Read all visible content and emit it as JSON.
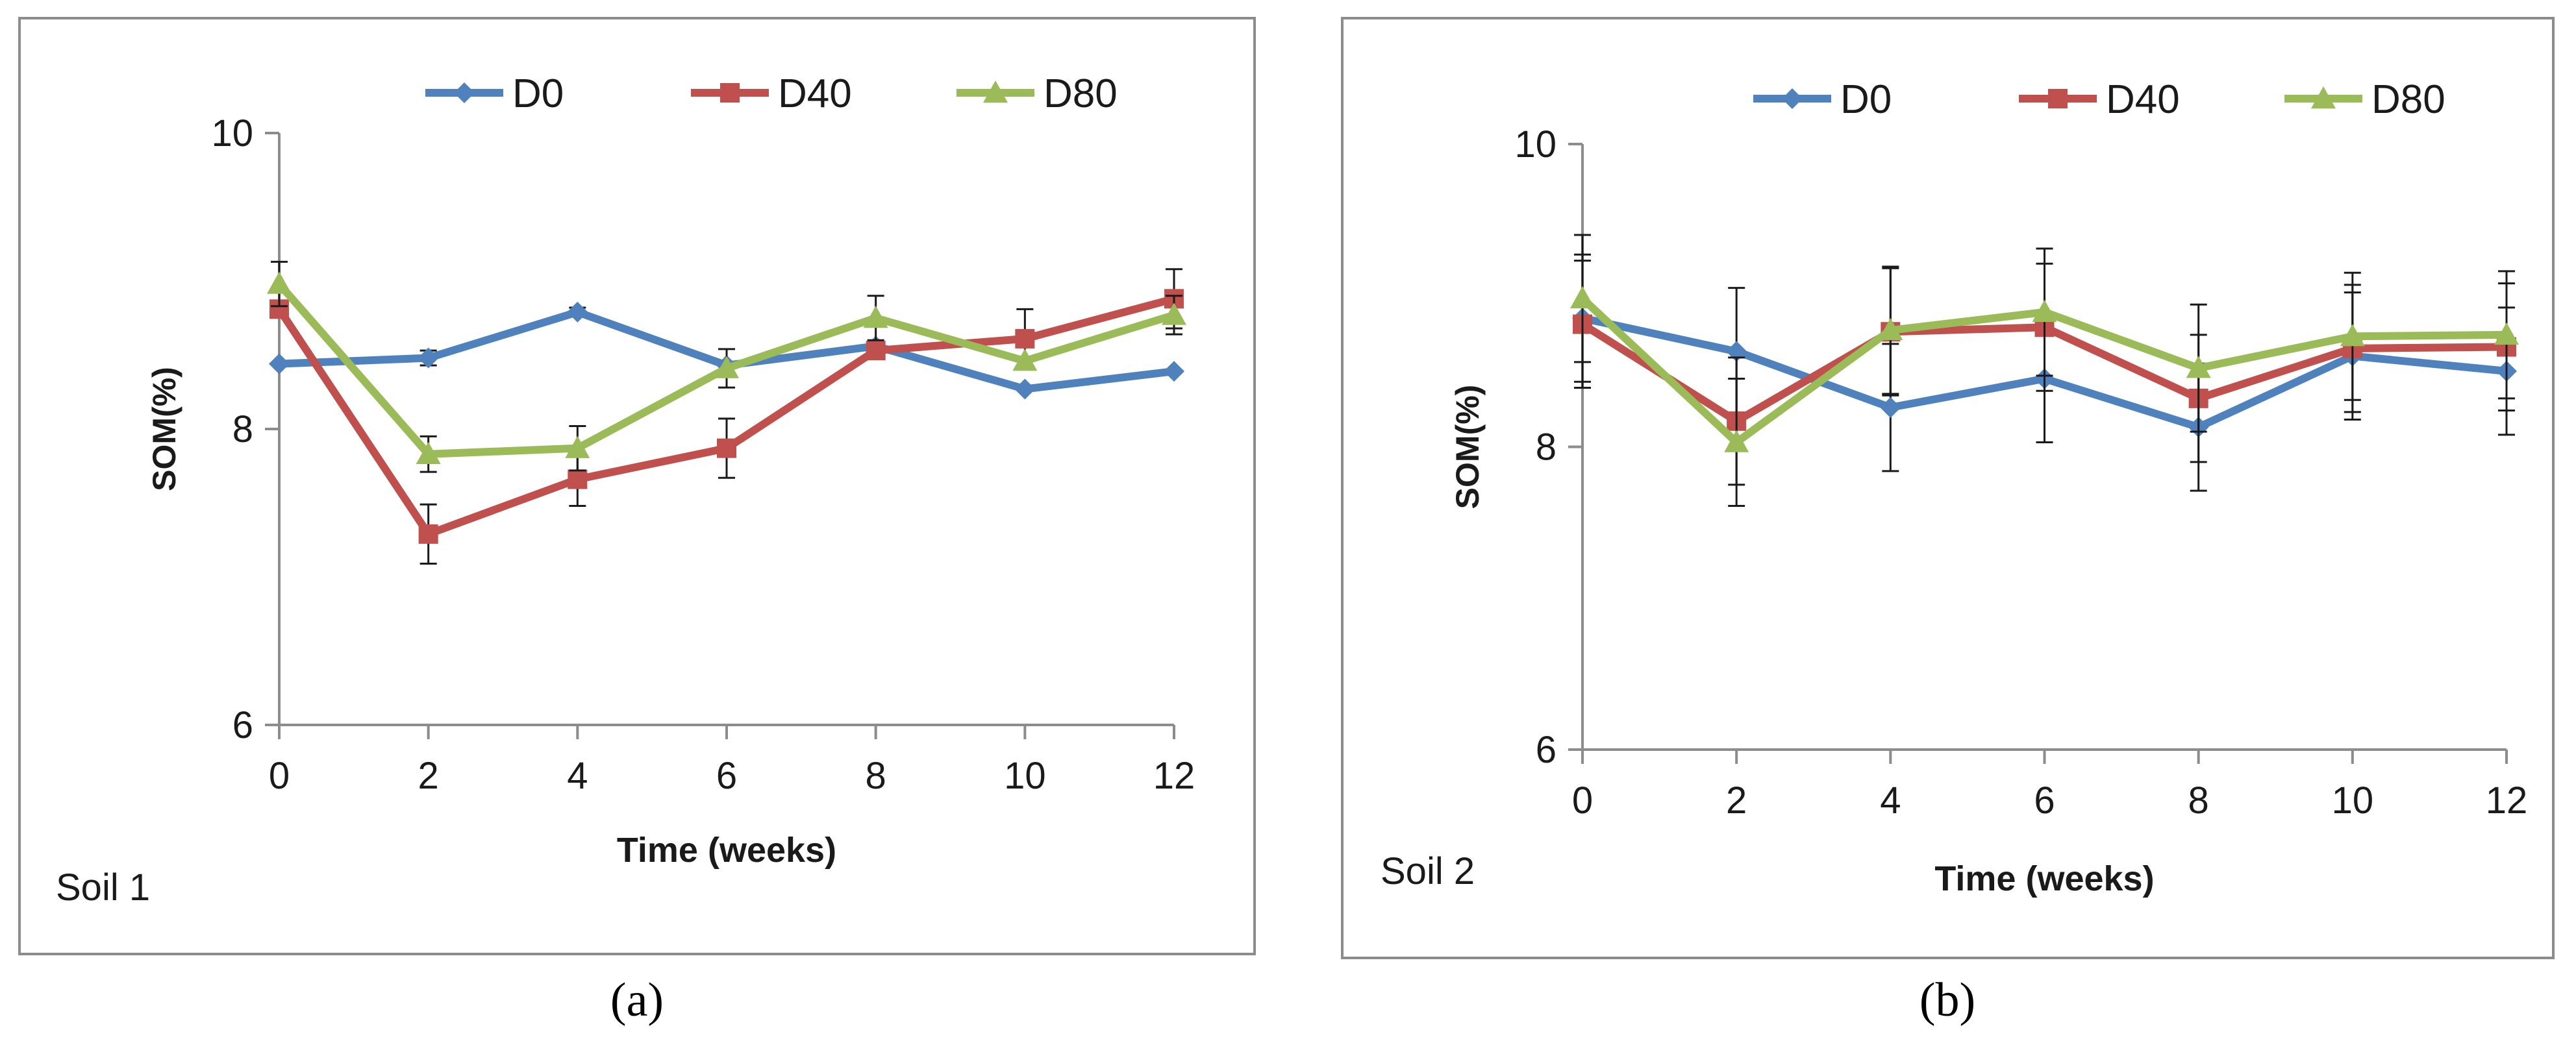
{
  "chart_data": [
    {
      "type": "line",
      "panel_label": "Soil 1",
      "caption": "(a)",
      "xlabel": "Time (weeks)",
      "ylabel": "SOM(%)",
      "x": [
        0,
        2,
        4,
        6,
        8,
        10,
        12
      ],
      "x_ticks": [
        "0",
        "2",
        "4",
        "6",
        "8",
        "10",
        "12"
      ],
      "ylim": [
        6,
        10
      ],
      "y_ticks": [
        "6",
        "8",
        "10"
      ],
      "grid": false,
      "legend_position": "top",
      "series": [
        {
          "name": "D0",
          "color": "#4f81bd",
          "marker": "diamond",
          "values": [
            8.44,
            8.48,
            8.79,
            8.43,
            8.56,
            8.27,
            8.39
          ],
          "errors": [
            0.0,
            0.05,
            0.03,
            0.0,
            0.0,
            0.0,
            0.0
          ]
        },
        {
          "name": "D40",
          "color": "#c0504d",
          "marker": "square",
          "values": [
            8.81,
            7.29,
            7.66,
            7.87,
            8.53,
            8.61,
            8.88
          ],
          "errors": [
            0.0,
            0.2,
            0.18,
            0.2,
            0.0,
            0.2,
            0.2
          ]
        },
        {
          "name": "D80",
          "color": "#9bbb59",
          "marker": "triangle",
          "values": [
            8.98,
            7.83,
            7.87,
            8.41,
            8.75,
            8.46,
            8.77
          ],
          "errors": [
            0.15,
            0.12,
            0.15,
            0.13,
            0.15,
            0.0,
            0.13
          ]
        }
      ]
    },
    {
      "type": "line",
      "panel_label": "Soil 2",
      "caption": "(b)",
      "xlabel": "Time (weeks)",
      "ylabel": "SOM(%)",
      "x": [
        0,
        2,
        4,
        6,
        8,
        10,
        12
      ],
      "x_ticks": [
        "0",
        "2",
        "4",
        "6",
        "8",
        "10",
        "12"
      ],
      "ylim": [
        6,
        10
      ],
      "y_ticks": [
        "6",
        "8",
        "10"
      ],
      "grid": false,
      "legend_position": "top",
      "series": [
        {
          "name": "D0",
          "color": "#4f81bd",
          "marker": "diamond",
          "values": [
            8.85,
            8.63,
            8.26,
            8.45,
            8.13,
            8.6,
            8.5
          ],
          "errors": [
            0.42,
            0.42,
            0.42,
            0.42,
            0.42,
            0.42,
            0.42
          ]
        },
        {
          "name": "D40",
          "color": "#c0504d",
          "marker": "square",
          "values": [
            8.81,
            8.17,
            8.76,
            8.79,
            8.32,
            8.65,
            8.66
          ],
          "errors": [
            0.42,
            0.42,
            0.42,
            0.42,
            0.42,
            0.42,
            0.42
          ]
        },
        {
          "name": "D80",
          "color": "#9bbb59",
          "marker": "triangle",
          "values": [
            8.98,
            8.03,
            8.77,
            8.89,
            8.52,
            8.73,
            8.74
          ],
          "errors": [
            0.42,
            0.42,
            0.42,
            0.42,
            0.42,
            0.42,
            0.42
          ]
        }
      ]
    }
  ]
}
